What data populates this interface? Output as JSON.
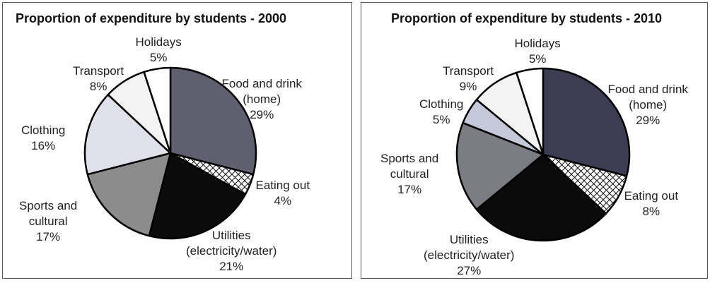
{
  "chart_data": [
    {
      "type": "pie",
      "title": "Proportion of expenditure by students - 2000",
      "slices": [
        {
          "key": "food",
          "label_lines": [
            "Food and drink",
            "(home)"
          ],
          "value": 29,
          "value_label": "29%",
          "fill": "#5f5f6f",
          "pattern": ""
        },
        {
          "key": "eating",
          "label_lines": [
            "Eating out"
          ],
          "value": 4,
          "value_label": "4%",
          "fill": "#ffffff",
          "pattern": "crosshatch"
        },
        {
          "key": "utilities",
          "label_lines": [
            "Utilities",
            "(electricity/water)"
          ],
          "value": 21,
          "value_label": "21%",
          "fill": "#0b0b0b",
          "pattern": ""
        },
        {
          "key": "sports",
          "label_lines": [
            "Sports and",
            "cultural"
          ],
          "value": 17,
          "value_label": "17%",
          "fill": "#8c8c8c",
          "pattern": ""
        },
        {
          "key": "clothing",
          "label_lines": [
            "Clothing"
          ],
          "value": 16,
          "value_label": "16%",
          "fill": "#e0e0ea",
          "pattern": ""
        },
        {
          "key": "transport",
          "label_lines": [
            "Transport"
          ],
          "value": 8,
          "value_label": "8%",
          "fill": "#f3f3f3",
          "pattern": ""
        },
        {
          "key": "holidays",
          "label_lines": [
            "Holidays"
          ],
          "value": 5,
          "value_label": "5%",
          "fill": "#ffffff",
          "pattern": ""
        }
      ]
    },
    {
      "type": "pie",
      "title": "Proportion of expenditure by students - 2010",
      "slices": [
        {
          "key": "food",
          "label_lines": [
            "Food and drink",
            "(home)"
          ],
          "value": 29,
          "value_label": "29%",
          "fill": "#3c3c52",
          "pattern": ""
        },
        {
          "key": "eating",
          "label_lines": [
            "Eating out"
          ],
          "value": 8,
          "value_label": "8%",
          "fill": "#ffffff",
          "pattern": "crosshatch"
        },
        {
          "key": "utilities",
          "label_lines": [
            "Utilities",
            "(electricity/water)"
          ],
          "value": 27,
          "value_label": "27%",
          "fill": "#0b0b0b",
          "pattern": ""
        },
        {
          "key": "sports",
          "label_lines": [
            "Sports and",
            "cultural"
          ],
          "value": 17,
          "value_label": "17%",
          "fill": "#7c7c84",
          "pattern": ""
        },
        {
          "key": "clothing",
          "label_lines": [
            "Clothing"
          ],
          "value": 5,
          "value_label": "5%",
          "fill": "#c4c8d8",
          "pattern": ""
        },
        {
          "key": "transport",
          "label_lines": [
            "Transport"
          ],
          "value": 9,
          "value_label": "9%",
          "fill": "#f3f3f3",
          "pattern": ""
        },
        {
          "key": "holidays",
          "label_lines": [
            "Holidays"
          ],
          "value": 5,
          "value_label": "5%",
          "fill": "#ffffff",
          "pattern": ""
        }
      ]
    }
  ]
}
